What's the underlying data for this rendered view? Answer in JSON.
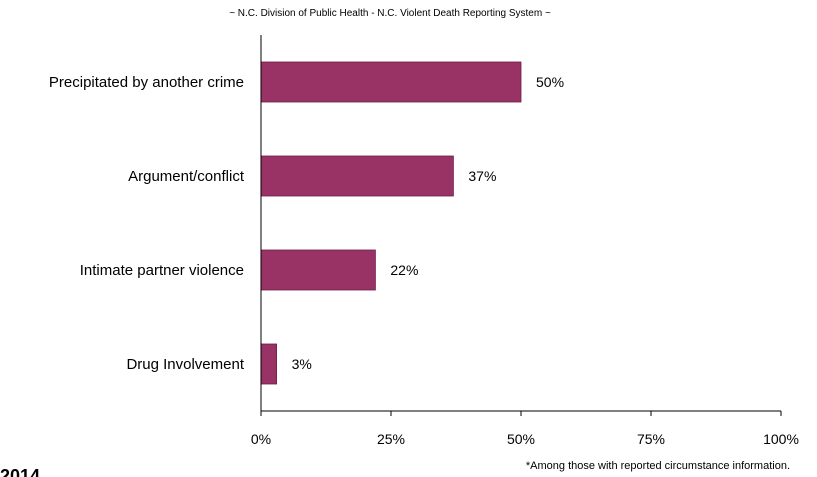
{
  "header": {
    "subtitle": "~ N.C. Division of Public Health - N.C. Violent Death Reporting System ~"
  },
  "footer": {
    "footnote": "*Among those with reported circumstance information.",
    "cut_title_fragment": "2014"
  },
  "chart_data": {
    "type": "bar",
    "orientation": "horizontal",
    "title": "",
    "subtitle": "~ N.C. Division of Public Health - N.C. Violent Death Reporting System ~",
    "categories": [
      "Precipitated by another crime",
      "Argument/conflict",
      "Intimate partner violence",
      "Drug Involvement"
    ],
    "values": [
      50,
      37,
      22,
      3
    ],
    "data_labels": [
      "50%",
      "37%",
      "22%",
      "3%"
    ],
    "xlim": [
      0,
      100
    ],
    "xticks": [
      0,
      25,
      50,
      75,
      100
    ],
    "xtick_labels": [
      "0%",
      "25%",
      "50%",
      "75%",
      "100%"
    ],
    "xlabel": "",
    "ylabel": "",
    "grid": false,
    "legend": "none",
    "bar_color": "#993366"
  }
}
